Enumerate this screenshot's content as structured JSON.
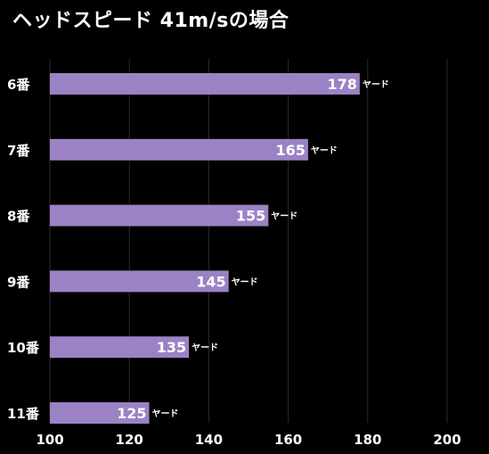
{
  "chart_data": {
    "type": "bar",
    "orientation": "horizontal",
    "title": "ヘッドスピード 41m/sの場合",
    "categories": [
      "6番",
      "7番",
      "8番",
      "9番",
      "10番",
      "11番"
    ],
    "values": [
      178,
      165,
      155,
      145,
      135,
      125
    ],
    "value_unit": "ヤード",
    "xlim": [
      100,
      200
    ],
    "xticks": [
      100,
      120,
      140,
      160,
      180,
      200
    ],
    "grid": "vertical",
    "colors": {
      "bar": "#9b82c4",
      "background": "#000000",
      "grid": "#2b2b2b",
      "text": "#ffffff"
    }
  }
}
